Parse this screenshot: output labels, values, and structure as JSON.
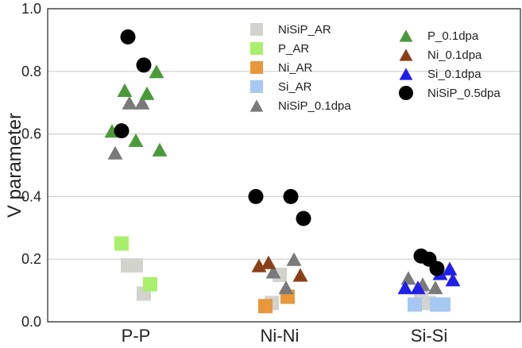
{
  "chart_data": {
    "type": "scatter",
    "title": "",
    "xlabel": "",
    "ylabel": "V parameter",
    "categories": [
      "P-P",
      "Ni-Ni",
      "Si-Si"
    ],
    "ylim": [
      0.0,
      1.0
    ],
    "yticks": [
      "0.0",
      "0.2",
      "0.4",
      "0.6",
      "0.8",
      "1.0"
    ],
    "grid": "horizontal",
    "legend_position": "top-right, two columns",
    "series": [
      {
        "name": "NiSiP_AR",
        "marker": "square",
        "color": "#d3d3ce",
        "points": [
          {
            "category": "P-P",
            "y": 0.18
          },
          {
            "category": "P-P",
            "y": 0.18
          },
          {
            "category": "P-P",
            "y": 0.09
          },
          {
            "category": "Ni-Ni",
            "y": 0.15
          },
          {
            "category": "Ni-Ni",
            "y": 0.06
          },
          {
            "category": "Si-Si",
            "y": 0.06
          },
          {
            "category": "Si-Si",
            "y": 0.08
          }
        ]
      },
      {
        "name": "P_AR",
        "marker": "square",
        "color": "#a8f06a",
        "points": [
          {
            "category": "P-P",
            "y": 0.25
          },
          {
            "category": "P-P",
            "y": 0.12
          }
        ]
      },
      {
        "name": "Ni_AR",
        "marker": "square",
        "color": "#e8973a",
        "points": [
          {
            "category": "Ni-Ni",
            "y": 0.08
          },
          {
            "category": "Ni-Ni",
            "y": 0.05
          }
        ]
      },
      {
        "name": "Si_AR",
        "marker": "square",
        "color": "#a6c8f2",
        "points": [
          {
            "category": "Si-Si",
            "y": 0.055
          },
          {
            "category": "Si-Si",
            "y": 0.055
          },
          {
            "category": "Si-Si",
            "y": 0.055
          }
        ]
      },
      {
        "name": "NiSiP_0.1dpa",
        "marker": "triangle",
        "color": "#7a7a7a",
        "points": [
          {
            "category": "P-P",
            "y": 0.7
          },
          {
            "category": "P-P",
            "y": 0.7
          },
          {
            "category": "P-P",
            "y": 0.54
          },
          {
            "category": "Ni-Ni",
            "y": 0.2
          },
          {
            "category": "Ni-Ni",
            "y": 0.16
          },
          {
            "category": "Ni-Ni",
            "y": 0.11
          },
          {
            "category": "Si-Si",
            "y": 0.12
          },
          {
            "category": "Si-Si",
            "y": 0.11
          },
          {
            "category": "Si-Si",
            "y": 0.14
          }
        ]
      },
      {
        "name": "P_0.1dpa",
        "marker": "triangle",
        "color": "#4a9a3c",
        "points": [
          {
            "category": "P-P",
            "y": 0.8
          },
          {
            "category": "P-P",
            "y": 0.74
          },
          {
            "category": "P-P",
            "y": 0.73
          },
          {
            "category": "P-P",
            "y": 0.61
          },
          {
            "category": "P-P",
            "y": 0.55
          },
          {
            "category": "P-P",
            "y": 0.58
          }
        ]
      },
      {
        "name": "Ni_0.1dpa",
        "marker": "triangle",
        "color": "#8b3f16",
        "points": [
          {
            "category": "Ni-Ni",
            "y": 0.18
          },
          {
            "category": "Ni-Ni",
            "y": 0.15
          },
          {
            "category": "Ni-Ni",
            "y": 0.19
          }
        ]
      },
      {
        "name": "Si_0.1dpa",
        "marker": "triangle",
        "color": "#2020e8",
        "points": [
          {
            "category": "Si-Si",
            "y": 0.17
          },
          {
            "category": "Si-Si",
            "y": 0.11
          },
          {
            "category": "Si-Si",
            "y": 0.155
          },
          {
            "category": "Si-Si",
            "y": 0.11
          },
          {
            "category": "Si-Si",
            "y": 0.135
          }
        ]
      },
      {
        "name": "NiSiP_0.5dpa",
        "marker": "circle",
        "color": "#000000",
        "points": [
          {
            "category": "P-P",
            "y": 0.91
          },
          {
            "category": "P-P",
            "y": 0.82
          },
          {
            "category": "P-P",
            "y": 0.61
          },
          {
            "category": "Ni-Ni",
            "y": 0.4
          },
          {
            "category": "Ni-Ni",
            "y": 0.4
          },
          {
            "category": "Ni-Ni",
            "y": 0.33
          },
          {
            "category": "Si-Si",
            "y": 0.2
          },
          {
            "category": "Si-Si",
            "y": 0.21
          },
          {
            "category": "Si-Si",
            "y": 0.17
          }
        ]
      }
    ]
  }
}
